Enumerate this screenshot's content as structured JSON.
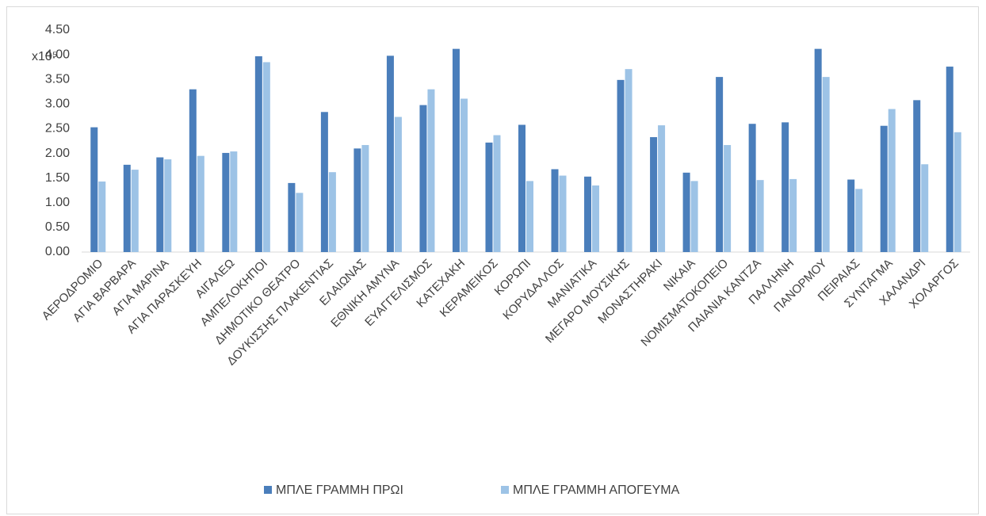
{
  "chart_data": {
    "type": "bar",
    "axis_multiplier": "x10⁵",
    "categories": [
      "ΑΕΡΟΔΡΟΜΙΟ",
      "ΑΓΙΑ ΒΑΡΒΑΡΑ",
      "ΑΓΙΑ ΜΑΡΙΝΑ",
      "ΑΓΙΑ ΠΑΡΑΣΚΕΥΗ",
      "ΑΙΓΑΛΕΩ",
      "ΑΜΠΕΛΟΚΗΠΟΙ",
      "ΔΗΜΟΤΙΚΟ ΘΕΑΤΡΟ",
      "ΔΟΥΚΙΣΣΗΣ ΠΛΑΚΕΝΤΙΑΣ",
      "ΕΛΑΙΩΝΑΣ",
      "ΕΘΝΙΚΗ ΑΜΥΝΑ",
      "ΕΥΑΓΓΕΛΙΣΜΟΣ",
      "ΚΑΤΕΧΑΚΗ",
      "ΚΕΡΑΜΕΙΚΟΣ",
      "ΚΟΡΩΠΙ",
      "ΚΟΡΥΔΑΛΛΟΣ",
      "ΜΑΝΙΑΤΙΚΑ",
      "ΜΕΓΑΡΟ ΜΟΥΣΙΚΗΣ",
      "ΜΟΝΑΣΤΗΡΑΚΙ",
      "ΝΙΚΑΙΑ",
      "ΝΟΜΙΣΜΑΤΟΚΟΠΕΙΟ",
      "ΠΑΙΑΝΙΑ ΚΑΝΤΖΑ",
      "ΠΑΛΛΗΝΗ",
      "ΠΑΝΟΡΜΟΥ",
      "ΠΕΙΡΑΙΑΣ",
      "ΣΥΝΤΑΓΜΑ",
      "ΧΑΛΑΝΔΡΙ",
      "ΧΟΛΑΡΓΟΣ"
    ],
    "series": [
      {
        "name": "ΜΠΛΕ ΓΡΑΜΜΗ  ΠΡΩΙ",
        "color": "#4a7ebb",
        "values": [
          2.53,
          1.77,
          1.92,
          3.3,
          2.01,
          3.97,
          1.4,
          2.84,
          2.1,
          3.98,
          2.98,
          4.12,
          2.22,
          2.58,
          1.68,
          1.53,
          3.49,
          2.33,
          1.61,
          3.55,
          2.6,
          2.63,
          4.12,
          1.47,
          2.56,
          3.08,
          3.76
        ]
      },
      {
        "name": "ΜΠΛΕ ΓΡΑΜΜΗ  ΑΠΟΓΕΥΜΑ",
        "color": "#9dc3e6",
        "values": [
          1.43,
          1.67,
          1.88,
          1.95,
          2.04,
          3.85,
          1.2,
          1.62,
          2.17,
          2.74,
          3.3,
          3.11,
          2.37,
          1.44,
          1.55,
          1.35,
          3.71,
          2.57,
          1.44,
          2.17,
          1.46,
          1.48,
          3.55,
          1.28,
          2.9,
          1.78,
          2.43
        ]
      }
    ],
    "ylim": [
      0,
      4.5
    ],
    "yticks": [
      {
        "value": 0,
        "label": "0.00"
      },
      {
        "value": 0.5,
        "label": "0.50"
      },
      {
        "value": 1,
        "label": "1.00"
      },
      {
        "value": 1.5,
        "label": "1.50"
      },
      {
        "value": 2,
        "label": "2.00"
      },
      {
        "value": 2.5,
        "label": "2.50"
      },
      {
        "value": 3,
        "label": "3.00"
      },
      {
        "value": 3.5,
        "label": "3.50"
      },
      {
        "value": 4,
        "label": "4.00"
      },
      {
        "value": 4.5,
        "label": "4.50"
      }
    ],
    "grid": false,
    "legend": "bottom"
  }
}
